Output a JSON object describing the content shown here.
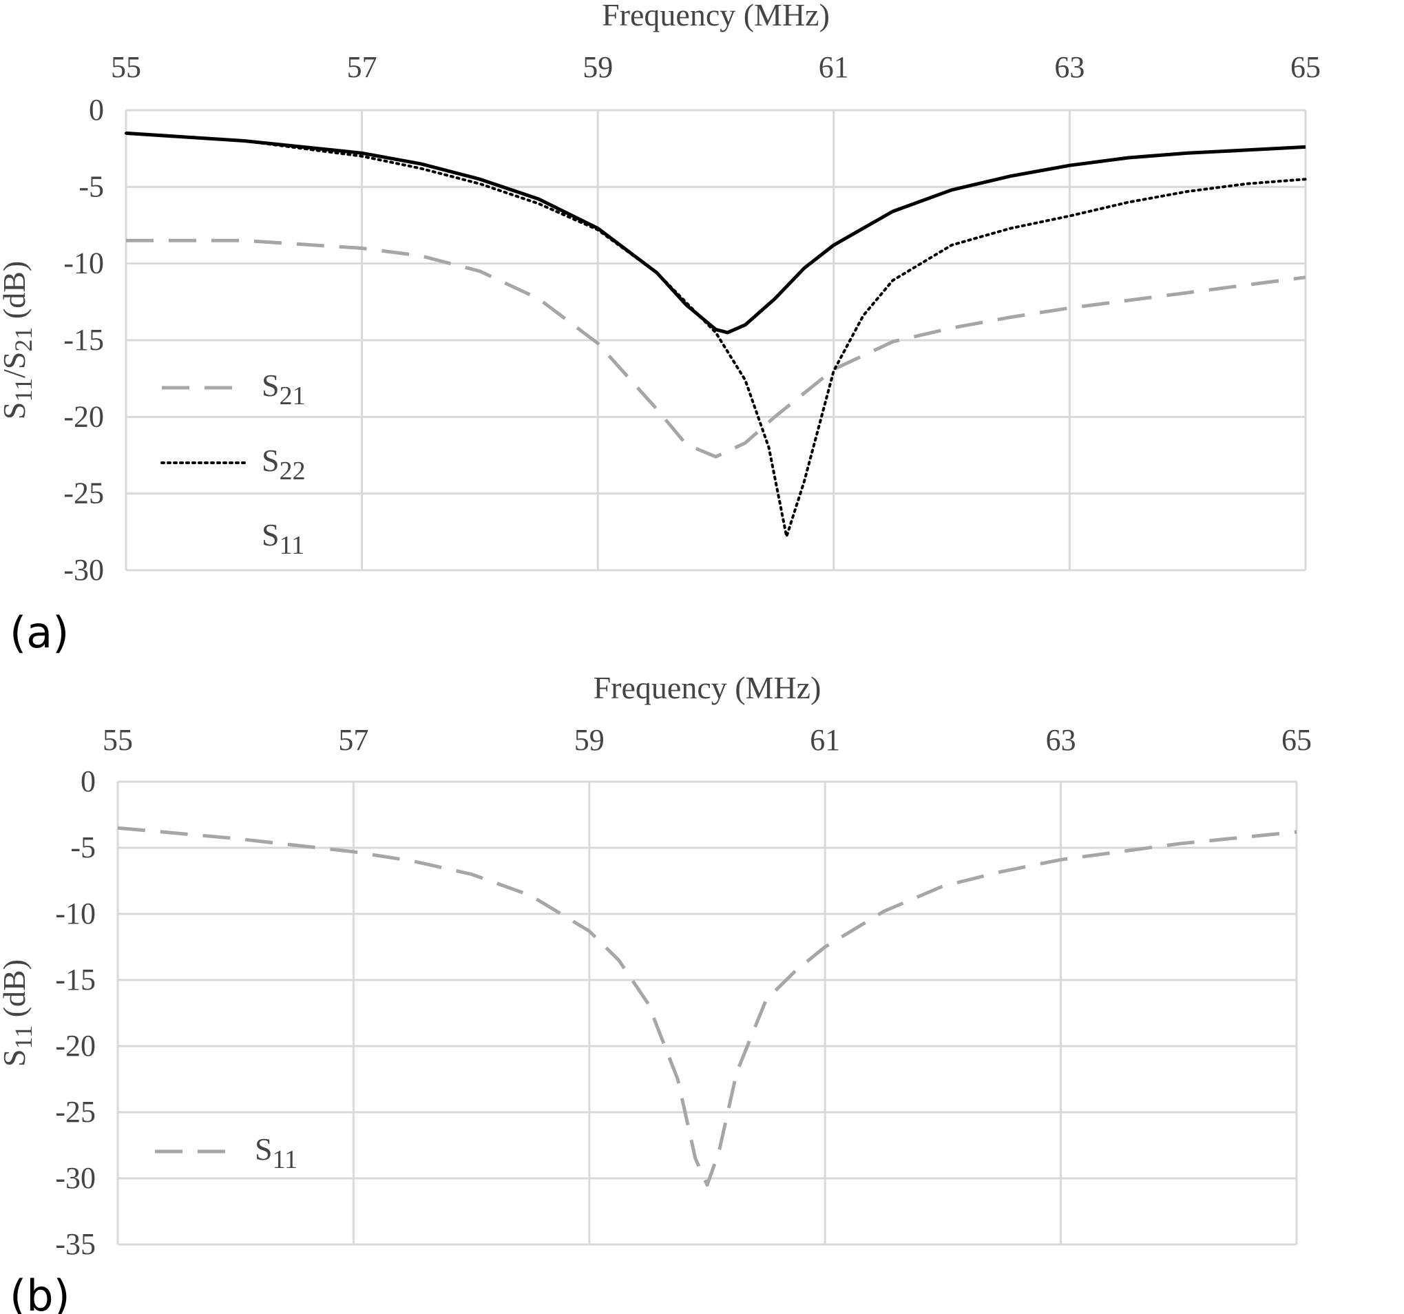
{
  "chart_data": [
    {
      "type": "line",
      "panel_label": "(a)",
      "xlabel": "Frequency (MHz)",
      "ylabel": "S11/S21 (dB)",
      "ylabel_parts": [
        "S",
        "11",
        "/S",
        "21",
        " (dB)"
      ],
      "xlim": [
        55,
        65
      ],
      "ylim": [
        -30,
        0
      ],
      "xticks": [
        55,
        57,
        59,
        61,
        63,
        65
      ],
      "yticks": [
        0,
        -5,
        -10,
        -15,
        -20,
        -25,
        -30
      ],
      "grid": true,
      "legend_position": "bottom-left",
      "series": [
        {
          "name": "S21",
          "name_base": "S",
          "name_sub": "21",
          "color": "#a6a6a6",
          "dash": "dashed",
          "show_legend_line": true,
          "x": [
            55,
            56,
            57,
            57.5,
            58,
            58.5,
            59,
            59.5,
            59.75,
            60,
            60.25,
            60.5,
            61,
            61.5,
            62,
            62.5,
            63,
            63.5,
            64,
            64.5,
            65
          ],
          "y": [
            -8.5,
            -8.5,
            -9.0,
            -9.5,
            -10.5,
            -12.3,
            -15.2,
            -19.5,
            -21.8,
            -22.6,
            -21.7,
            -20.0,
            -16.9,
            -15.1,
            -14.2,
            -13.5,
            -12.9,
            -12.4,
            -11.9,
            -11.4,
            -10.9
          ]
        },
        {
          "name": "S22",
          "name_base": "S",
          "name_sub": "22",
          "color": "#000000",
          "dash": "dotted",
          "show_legend_line": true,
          "x": [
            55,
            56,
            57,
            57.5,
            58,
            58.5,
            59,
            59.5,
            60,
            60.25,
            60.45,
            60.6,
            60.75,
            61,
            61.25,
            61.5,
            62,
            62.5,
            63,
            63.5,
            64,
            64.5,
            65
          ],
          "y": [
            -1.5,
            -2.0,
            -3.0,
            -3.8,
            -4.8,
            -6.1,
            -7.8,
            -10.6,
            -14.5,
            -17.6,
            -22.0,
            -27.8,
            -24.2,
            -17.0,
            -13.4,
            -11.1,
            -8.8,
            -7.7,
            -6.9,
            -6.0,
            -5.3,
            -4.8,
            -4.5
          ]
        },
        {
          "name": "S11",
          "name_base": "S",
          "name_sub": "11",
          "color": "#000000",
          "dash": "solid",
          "show_legend_line": false,
          "x": [
            55,
            56,
            57,
            57.5,
            58,
            58.5,
            59,
            59.5,
            59.75,
            60,
            60.1,
            60.25,
            60.5,
            60.75,
            61,
            61.5,
            62,
            62.5,
            63,
            63.5,
            64,
            64.5,
            65
          ],
          "y": [
            -1.5,
            -2.0,
            -2.8,
            -3.5,
            -4.5,
            -5.8,
            -7.7,
            -10.6,
            -12.7,
            -14.3,
            -14.5,
            -14.0,
            -12.3,
            -10.3,
            -8.8,
            -6.6,
            -5.2,
            -4.3,
            -3.6,
            -3.1,
            -2.8,
            -2.6,
            -2.4
          ]
        }
      ]
    },
    {
      "type": "line",
      "panel_label": "(b)",
      "xlabel": "Frequency (MHz)",
      "ylabel": "S11 (dB)",
      "ylabel_parts": [
        "S",
        "11",
        " (dB)"
      ],
      "xlim": [
        55,
        65
      ],
      "ylim": [
        -35,
        0
      ],
      "xticks": [
        55,
        57,
        59,
        61,
        63,
        65
      ],
      "yticks": [
        0,
        -5,
        -10,
        -15,
        -20,
        -25,
        -30,
        -35
      ],
      "grid": true,
      "legend_position": "bottom-left",
      "series": [
        {
          "name": "S11",
          "name_base": "S",
          "name_sub": "11",
          "color": "#a6a6a6",
          "dash": "dashed",
          "show_legend_line": true,
          "x": [
            55,
            56,
            57,
            57.5,
            58,
            58.5,
            59,
            59.25,
            59.5,
            59.75,
            59.9,
            60,
            60.1,
            60.25,
            60.5,
            60.75,
            61,
            61.5,
            62,
            62.5,
            63,
            64,
            65
          ],
          "y": [
            -3.5,
            -4.3,
            -5.3,
            -6.0,
            -7.0,
            -8.6,
            -11.3,
            -13.5,
            -16.8,
            -22.5,
            -28.5,
            -30.5,
            -28.0,
            -22.0,
            -16.5,
            -14.3,
            -12.5,
            -9.8,
            -7.9,
            -6.8,
            -5.9,
            -4.7,
            -3.8
          ]
        }
      ]
    }
  ]
}
